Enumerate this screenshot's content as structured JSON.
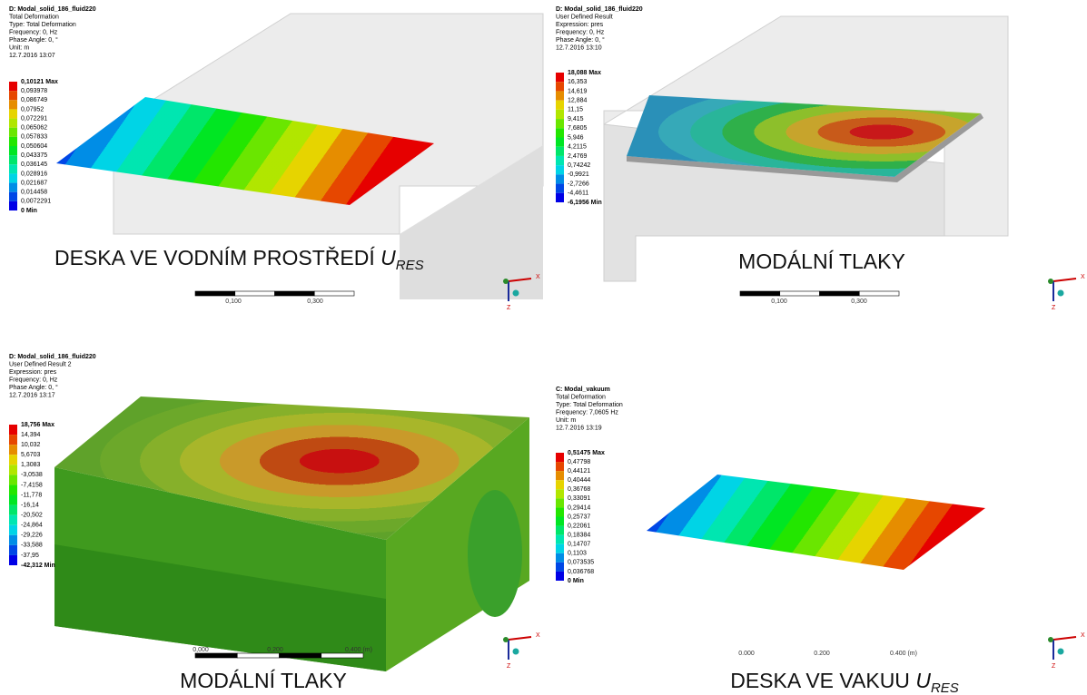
{
  "triad": {
    "x": "X",
    "z": "Z"
  },
  "panels": [
    {
      "header": [
        "D: Modal_solid_186_fluid220",
        "Total Deformation",
        "Type: Total Deformation",
        "Frequency: 0, Hz",
        "Phase Angle: 0, °",
        "Unit: m",
        "12.7.2016 13:07"
      ],
      "legend": [
        "0,10121 Max",
        "0,093978",
        "0,086749",
        "0,07952",
        "0,072291",
        "0,065062",
        "0,057833",
        "0,050604",
        "0,043375",
        "0,036145",
        "0,028916",
        "0,021687",
        "0,014458",
        "0,0072291",
        "0 Min"
      ],
      "caption": "DESKA VE VODNÍM PROSTŘEDÍ ",
      "caption_symbol": "U",
      "caption_subscript": "RES",
      "scale": [
        "0,100",
        "0,300"
      ]
    },
    {
      "header": [
        "D: Modal_solid_186_fluid220",
        "User Defined Result",
        "Expression: pres",
        "Frequency: 0, Hz",
        "Phase Angle: 0, °",
        "12.7.2016 13:10"
      ],
      "legend": [
        "18,088 Max",
        "16,353",
        "14,619",
        "12,884",
        "11,15",
        "9,415",
        "7,6805",
        "5,946",
        "4,2115",
        "2,4769",
        "0,74242",
        "-0,9921",
        "-2,7266",
        "-4,4611",
        "-6,1956 Min"
      ],
      "caption": "MODÁLNÍ TLAKY",
      "scale": [
        "0,100",
        "0,300"
      ]
    },
    {
      "header": [
        "D: Modal_solid_186_fluid220",
        "User Defined Result 2",
        "Expression: pres",
        "Frequency: 0, Hz",
        "Phase Angle: 0, °",
        "12.7.2016 13:17"
      ],
      "legend": [
        "18,756 Max",
        "14,394",
        "10,032",
        "5,6703",
        "1,3083",
        "-3,0538",
        "-7,4158",
        "-11,778",
        "-16,14",
        "-20,502",
        "-24,864",
        "-29,226",
        "-33,588",
        "-37,95",
        "-42,312 Min"
      ],
      "caption": "MODÁLNÍ TLAKY",
      "scale": [
        "0,000",
        "0,200",
        "0,400 (m)"
      ]
    },
    {
      "header": [
        "C: Modal_vakuum",
        "Total Deformation",
        "Type: Total Deformation",
        "Frequency: 7,0605 Hz",
        "Unit: m",
        "12.7.2016 13:19"
      ],
      "legend": [
        "0,51475 Max",
        "0,47798",
        "0,44121",
        "0,40444",
        "0,36768",
        "0,33091",
        "0,29414",
        "0,25737",
        "0,22061",
        "0,18384",
        "0,14707",
        "0,1103",
        "0,073535",
        "0,036768",
        "0 Min"
      ],
      "caption": "DESKA VE VAKUU ",
      "caption_symbol": "U",
      "caption_subscript": "RES",
      "scale": [
        "0.000",
        "0.200",
        "0.400 (m)"
      ]
    }
  ]
}
